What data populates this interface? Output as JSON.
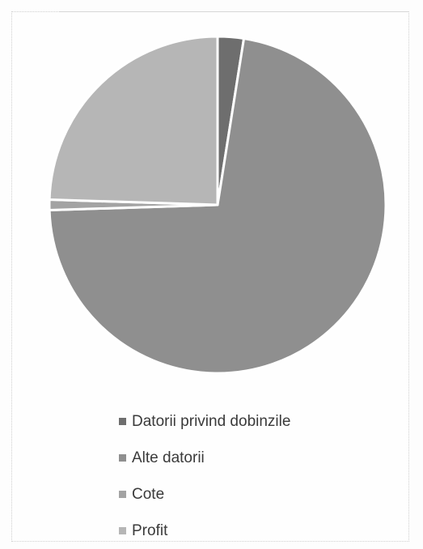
{
  "chart_data": {
    "type": "pie",
    "title": "",
    "categories": [
      "Datorii privind dobinzile",
      "Alte datorii",
      "Cote",
      "Profit"
    ],
    "values": [
      2.5,
      72.0,
      1.0,
      24.5
    ],
    "colors": [
      "#6e6e6e",
      "#8f8f8f",
      "#a3a3a3",
      "#b6b6b6"
    ],
    "start_angle_deg": 0,
    "direction": "clockwise",
    "legend_position": "bottom"
  },
  "legend": {
    "items": [
      {
        "label": "Datorii privind dobinzile",
        "color": "#6e6e6e"
      },
      {
        "label": "Alte datorii",
        "color": "#8f8f8f"
      },
      {
        "label": "Cote",
        "color": "#a3a3a3"
      },
      {
        "label": "Profit",
        "color": "#b6b6b6"
      }
    ]
  }
}
